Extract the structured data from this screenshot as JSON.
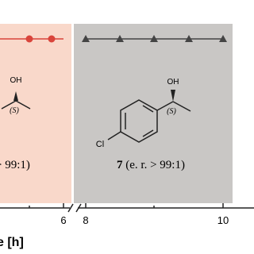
{
  "x_axis": {
    "label": "e [h]",
    "ticks": [
      "6",
      "8",
      "10"
    ]
  },
  "panels": [
    {
      "atoms": {
        "oh": "OH",
        "stereo": "(S)"
      },
      "caption": "> 99:1)"
    },
    {
      "atoms": {
        "oh": "OH",
        "stereo": "(S)",
        "cl": "Cl"
      },
      "compound": "7",
      "caption": "(e. r. > 99:1)"
    }
  ]
}
